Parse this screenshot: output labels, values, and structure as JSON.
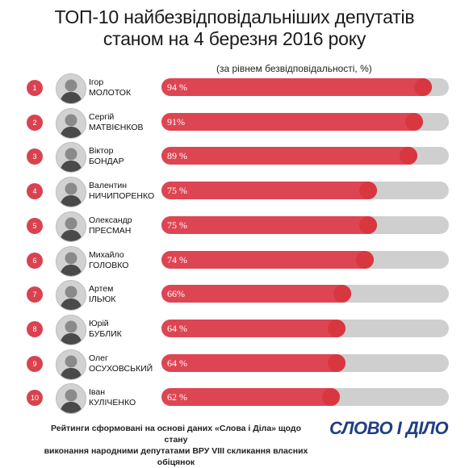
{
  "title_line1": "ТОП-10 найбезвідповідальніших депутатів",
  "title_line2": "станом на 4 березня 2016 року",
  "subtitle": "(за рівнем безвідповідальності, %)",
  "colors": {
    "accent": "#de4553",
    "track": "#cfcfd0",
    "logo": "#1f3d86"
  },
  "chart_data": {
    "type": "bar",
    "orientation": "horizontal",
    "ylim": [
      0,
      100
    ],
    "items": [
      {
        "rank": "1",
        "first": "Ігор",
        "last": "МОЛОТОК",
        "value": 94,
        "label": "94 %"
      },
      {
        "rank": "2",
        "first": "Сергій",
        "last": "МАТВІЄНКОВ",
        "value": 91,
        "label": "91%"
      },
      {
        "rank": "3",
        "first": "Віктор",
        "last": "БОНДАР",
        "value": 89,
        "label": "89 %"
      },
      {
        "rank": "4",
        "first": "Валентин",
        "last": "НИЧИПОРЕНКО",
        "value": 75,
        "label": "75 %"
      },
      {
        "rank": "5",
        "first": "Олександр",
        "last": "ПРЕСМАН",
        "value": 75,
        "label": "75 %"
      },
      {
        "rank": "6",
        "first": "Михайло",
        "last": "ГОЛОВКО",
        "value": 74,
        "label": "74 %"
      },
      {
        "rank": "7",
        "first": "Артем",
        "last": "ІЛЬЮК",
        "value": 66,
        "label": "66%"
      },
      {
        "rank": "8",
        "first": "Юрій",
        "last": "БУБЛИК",
        "value": 64,
        "label": "64 %"
      },
      {
        "rank": "9",
        "first": "Олег",
        "last": "ОСУХОВСЬКИЙ",
        "value": 64,
        "label": "64 %"
      },
      {
        "rank": "10",
        "first": "Іван",
        "last": "КУЛІЧЕНКО",
        "value": 62,
        "label": "62 %"
      }
    ]
  },
  "footer_line1": "Рейтинги сформовані на основі даних «Слова і Діла» щодо стану",
  "footer_line2": "виконання народними депутатами ВРУ VIII скликання власних обіцянок",
  "logo": "СЛОВО І ДІЛО"
}
